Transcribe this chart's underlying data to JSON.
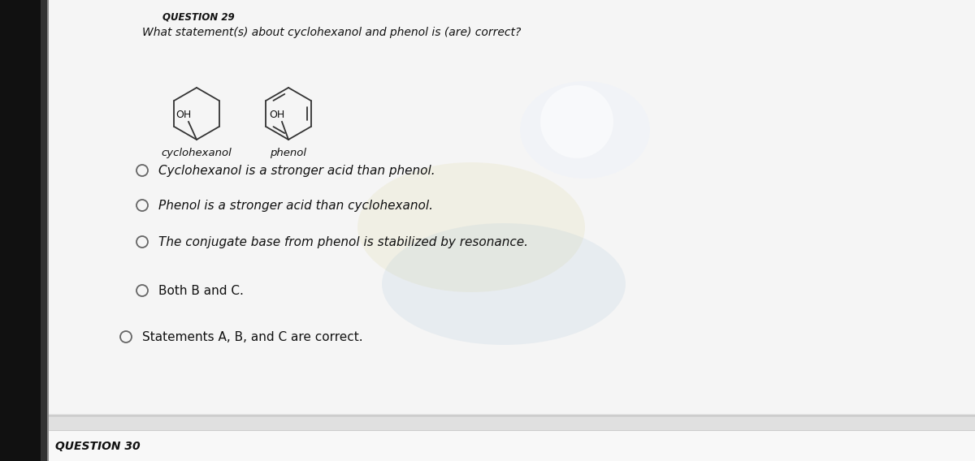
{
  "bg_left": "#1a1a1a",
  "bg_main": "#f0f0f0",
  "bg_bottom": "#e8e8e8",
  "question_number": "QUESTION 29",
  "question_text": "What statement(s) about cyclohexanol and phenol is (are) correct?",
  "label_cyclohexanol": "cyclohexanol",
  "label_phenol": "phenol",
  "options": [
    "Cyclohexanol is a stronger acid than phenol.",
    "Phenol is a stronger acid than cyclohexanol.",
    "The conjugate base from phenol is stabilized by resonance.",
    "Both B and C.",
    "Statements A, B, and C are correct."
  ],
  "option_styles": [
    "italic",
    "italic",
    "italic",
    "normal",
    "normal"
  ],
  "question_number_bottom": "QUESTION 30",
  "text_color": "#111111",
  "radio_color": "#555555"
}
